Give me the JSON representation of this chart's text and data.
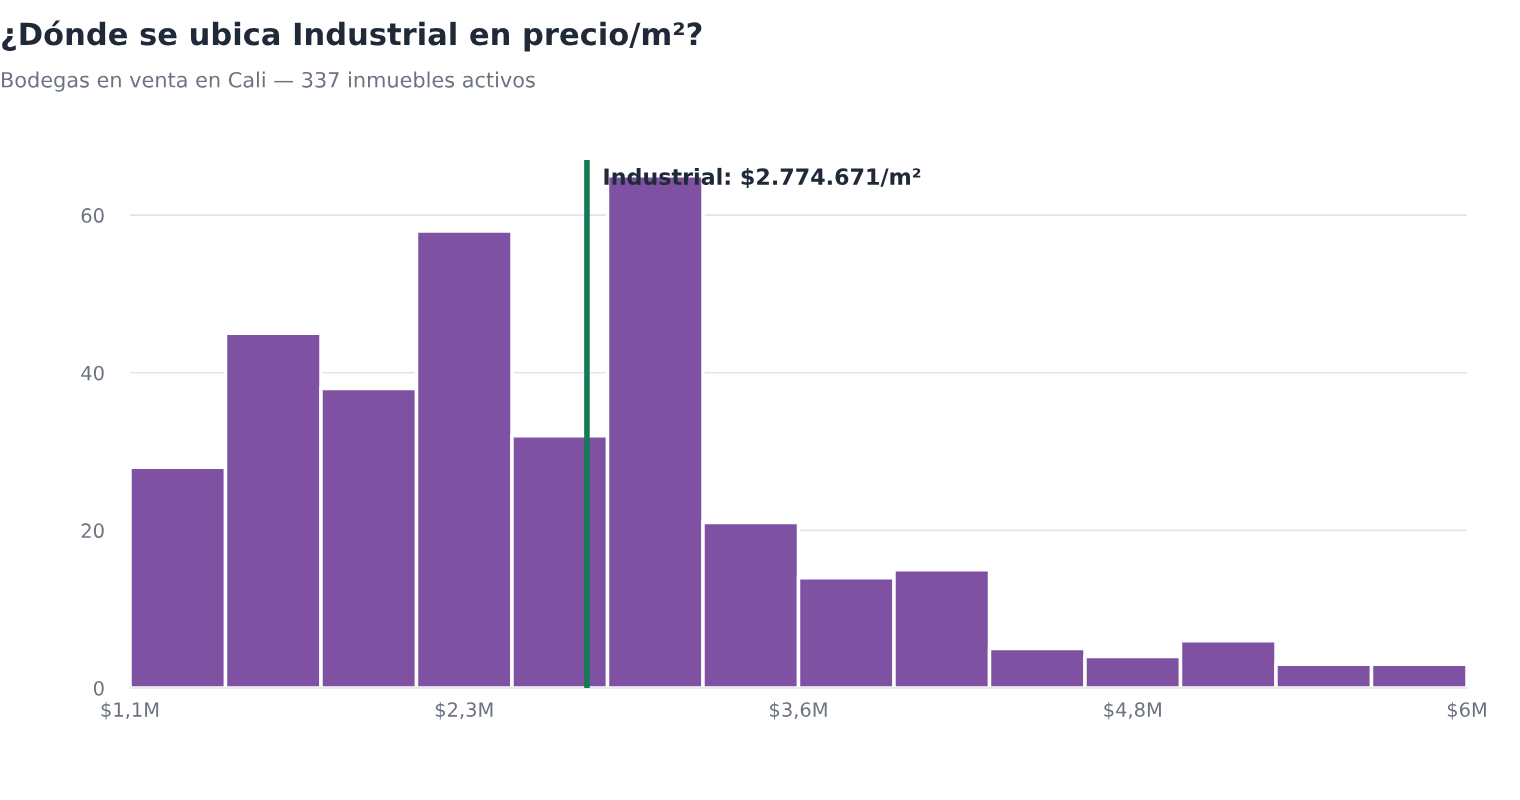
{
  "chart_data": {
    "type": "histogram",
    "title": "¿Dónde se ubica Industrial en precio/m²?",
    "subtitle": "Bodegas en venta en Cali — 337 inmuebles activos",
    "bins": [
      1.1,
      1.45,
      1.8,
      2.15,
      2.5,
      2.85,
      3.2,
      3.55,
      3.9,
      4.25,
      4.6,
      4.95,
      5.3,
      5.65,
      6.0
    ],
    "values": [
      28,
      45,
      38,
      58,
      32,
      65,
      21,
      14,
      15,
      5,
      4,
      6,
      3,
      3
    ],
    "color": "#7e51a2",
    "xlim": [
      1.1,
      6.0
    ],
    "xticks": [
      {
        "value": 1.1,
        "label": "$1,1M"
      },
      {
        "value": 2.325,
        "label": "$2,3M"
      },
      {
        "value": 3.55,
        "label": "$3,6M"
      },
      {
        "value": 4.775,
        "label": "$4,8M"
      },
      {
        "value": 6.0,
        "label": "$6M"
      }
    ],
    "ylim": [
      0,
      67
    ],
    "yticks": [
      0,
      20,
      40,
      60
    ],
    "grid": "y",
    "ref_lines": [
      {
        "axis": "x",
        "value": 2.774671,
        "label": "Industrial: $2.774.671/m²",
        "color": "#137a52"
      }
    ]
  }
}
